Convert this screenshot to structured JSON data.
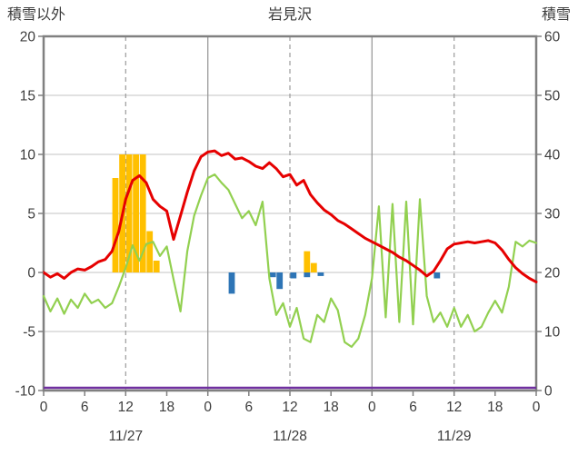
{
  "chart_data": {
    "type": "line",
    "title": "岩見沢",
    "left_axis": {
      "label": "積雪以外",
      "min": -10,
      "max": 20,
      "tick_values": [
        20,
        15,
        10,
        5,
        0,
        -5,
        -10
      ],
      "tick_labels": [
        "20",
        "15",
        "10",
        "5",
        "0",
        "-5",
        "-10"
      ]
    },
    "right_axis": {
      "label": "積雪",
      "min": 0,
      "max": 60,
      "tick_values": [
        60,
        50,
        40,
        30,
        20,
        10,
        0
      ],
      "tick_labels": [
        "60",
        "50",
        "40",
        "30",
        "20",
        "10",
        "0"
      ]
    },
    "x_axis": {
      "min": 0,
      "max": 72,
      "hour_tick_values": [
        0,
        6,
        12,
        18,
        24,
        30,
        36,
        42,
        48,
        54,
        60,
        66,
        72
      ],
      "hour_tick_labels": [
        "0",
        "6",
        "12",
        "18",
        "0",
        "6",
        "12",
        "18",
        "0",
        "6",
        "12",
        "18",
        "0"
      ],
      "date_labels": [
        {
          "label": "11/27",
          "hour": 12
        },
        {
          "label": "11/28",
          "hour": 36
        },
        {
          "label": "11/29",
          "hour": 60
        }
      ],
      "solid_gridline_hours": [
        24,
        48
      ],
      "dashed_gridline_hours": [
        12,
        36,
        60
      ]
    },
    "red_line": {
      "axis": "left",
      "hourly_values": [
        0.0,
        -0.4,
        -0.1,
        -0.5,
        0.0,
        0.3,
        0.2,
        0.5,
        0.9,
        1.1,
        1.8,
        3.5,
        6.2,
        7.8,
        8.2,
        7.6,
        6.2,
        5.6,
        5.2,
        2.8,
        4.8,
        6.8,
        8.6,
        9.8,
        10.2,
        10.3,
        9.9,
        10.1,
        9.6,
        9.7,
        9.4,
        9.0,
        8.8,
        9.3,
        8.8,
        8.1,
        8.3,
        7.4,
        7.8,
        6.6,
        5.9,
        5.3,
        4.9,
        4.4,
        4.1,
        3.7,
        3.3,
        2.9,
        2.6,
        2.3,
        2.0,
        1.7,
        1.3,
        1.0,
        0.6,
        0.2,
        -0.3,
        0.1,
        1.0,
        2.0,
        2.4,
        2.5,
        2.6,
        2.5,
        2.6,
        2.7,
        2.5,
        1.9,
        1.1,
        0.4,
        -0.1,
        -0.5,
        -0.8
      ]
    },
    "green_line": {
      "axis": "left",
      "hourly_values": [
        -2.0,
        -3.3,
        -2.2,
        -3.5,
        -2.3,
        -3.0,
        -1.8,
        -2.6,
        -2.3,
        -3.0,
        -2.6,
        -1.2,
        0.4,
        2.3,
        1.0,
        2.4,
        2.6,
        1.4,
        2.2,
        -0.6,
        -3.3,
        1.8,
        4.8,
        6.5,
        8.0,
        8.3,
        7.6,
        7.0,
        5.8,
        4.6,
        5.2,
        4.0,
        6.0,
        -0.5,
        -3.6,
        -2.6,
        -4.6,
        -3.0,
        -5.6,
        -5.9,
        -3.6,
        -4.2,
        -2.2,
        -3.2,
        -5.9,
        -6.3,
        -5.6,
        -3.6,
        -0.5,
        5.6,
        -3.8,
        5.8,
        -4.2,
        6.0,
        -4.4,
        6.2,
        -2.0,
        -4.2,
        -3.4,
        -4.6,
        -3.0,
        -4.6,
        -3.6,
        -5.0,
        -4.6,
        -3.4,
        -2.4,
        -3.4,
        -1.2,
        2.6,
        2.2,
        2.7,
        2.5
      ]
    },
    "orange_bars": {
      "axis": "left",
      "bars": [
        {
          "h": 10,
          "v": 8.0
        },
        {
          "h": 11,
          "v": 10.0
        },
        {
          "h": 12,
          "v": 10.0
        },
        {
          "h": 13,
          "v": 10.0
        },
        {
          "h": 14,
          "v": 10.0
        },
        {
          "h": 15,
          "v": 3.5
        },
        {
          "h": 16,
          "v": 1.0
        },
        {
          "h": 38,
          "v": 1.8
        },
        {
          "h": 39,
          "v": 0.8
        }
      ]
    },
    "blue_bars": {
      "axis": "left",
      "bars": [
        {
          "h": 27,
          "v": -1.8
        },
        {
          "h": 33,
          "v": -0.4
        },
        {
          "h": 34,
          "v": -1.4
        },
        {
          "h": 36,
          "v": -0.5
        },
        {
          "h": 38,
          "v": -0.4
        },
        {
          "h": 40,
          "v": -0.3
        },
        {
          "h": 57,
          "v": -0.5
        }
      ]
    },
    "purple_line": {
      "axis": "right",
      "constant_value": 0
    },
    "colors": {
      "red": "#e60000",
      "green": "#92d050",
      "orange": "#ffc000",
      "blue": "#2e75b6",
      "purple": "#7030a0",
      "border": "#808080",
      "gridline": "#c3c3c3",
      "gridline_strong": "#9b9b9b",
      "text": "#3d3d3d"
    }
  }
}
